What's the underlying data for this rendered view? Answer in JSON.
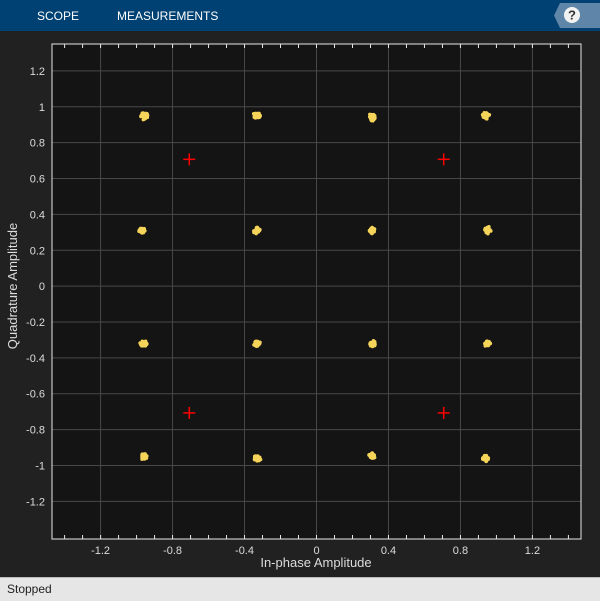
{
  "toolbar": {
    "tabs": [
      "SCOPE",
      "MEASUREMENTS"
    ],
    "help_icon": "question-mark-icon"
  },
  "status": "Stopped",
  "colors": {
    "toolbar": "#004173",
    "plot_bg": "#141414",
    "points": "#f5d45a",
    "reference": "#ff0000"
  },
  "chart_data": {
    "type": "scatter",
    "xlabel": "In-phase Amplitude",
    "ylabel": "Quadrature Amplitude",
    "xlim": [
      -1.47,
      1.47
    ],
    "ylim": [
      -1.41,
      1.35
    ],
    "xticks": [
      -1.2,
      -0.8,
      -0.4,
      0,
      0.4,
      0.8,
      1.2
    ],
    "yticks": [
      -1.2,
      -1,
      -0.8,
      -0.6,
      -0.4,
      -0.2,
      0,
      0.2,
      0.4,
      0.6,
      0.8,
      1,
      1.2
    ],
    "grid": true,
    "series": [
      {
        "kind": "received",
        "marker": "dot",
        "points": [
          [
            -0.96,
            0.95
          ],
          [
            -0.33,
            0.95
          ],
          [
            0.31,
            0.94
          ],
          [
            0.94,
            0.95
          ],
          [
            -0.97,
            0.31
          ],
          [
            -0.33,
            0.31
          ],
          [
            0.31,
            0.31
          ],
          [
            0.95,
            0.31
          ],
          [
            -0.96,
            -0.32
          ],
          [
            -0.33,
            -0.32
          ],
          [
            0.31,
            -0.32
          ],
          [
            0.95,
            -0.32
          ],
          [
            -0.96,
            -0.95
          ],
          [
            -0.33,
            -0.96
          ],
          [
            0.31,
            -0.95
          ],
          [
            0.94,
            -0.96
          ]
        ]
      },
      {
        "kind": "reference",
        "marker": "plus",
        "points": [
          [
            -0.707,
            0.707
          ],
          [
            0.707,
            0.707
          ],
          [
            -0.707,
            -0.707
          ],
          [
            0.707,
            -0.707
          ]
        ]
      }
    ]
  }
}
